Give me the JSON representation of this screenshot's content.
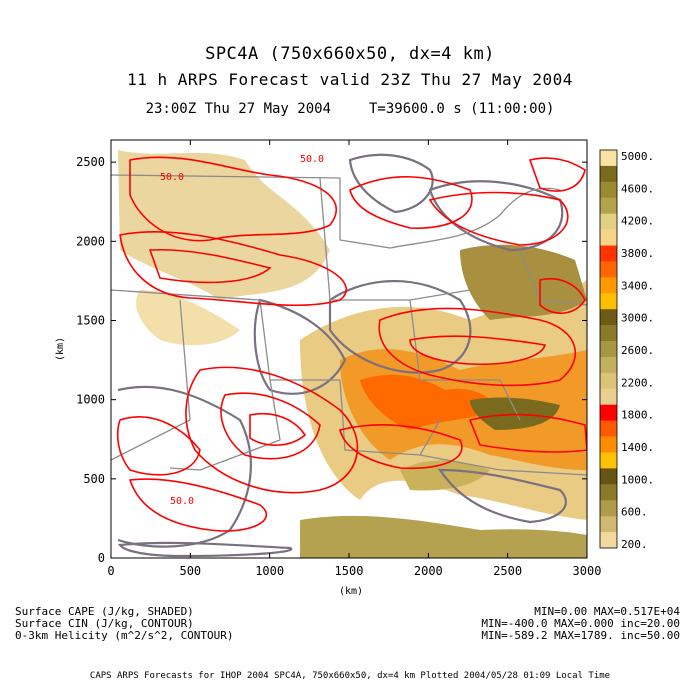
{
  "header": {
    "line1": "SPC4A (750x660x50, dx=4 km)",
    "line2": "11 h ARPS Forecast valid 23Z Thu 27 May 2004",
    "time": "23:00Z Thu 27 May 2004",
    "elapsed": "T=39600.0 s (11:00:00)"
  },
  "axes": {
    "x_label": "(km)",
    "y_label": "(km)",
    "x_range": [
      0,
      3000
    ],
    "y_range": [
      0,
      2640
    ],
    "x_ticks": [
      "0",
      "500",
      "1000",
      "1500",
      "2000",
      "2500",
      "3000"
    ],
    "y_ticks": [
      "0",
      "500",
      "1000",
      "1500",
      "2000",
      "2500"
    ]
  },
  "contour_labels": [
    "50.0",
    "50.0",
    "50.0"
  ],
  "colorbar": {
    "labels": [
      "5000.",
      "4600.",
      "4200.",
      "3800.",
      "3400.",
      "3000.",
      "2600.",
      "2200.",
      "1800.",
      "1400.",
      "1000.",
      "600.",
      "200."
    ],
    "colors_top_to_bottom": [
      "#f9e2a2",
      "#7a6a1e",
      "#9c8a30",
      "#b4a24c",
      "#e2cf86",
      "#f7d487",
      "#ff3300",
      "#ff6600",
      "#ff9900",
      "#ffbf00",
      "#6e5b18",
      "#8c7a28",
      "#a89742",
      "#c2b060",
      "#d9c47a",
      "#eacf90",
      "#ff0000",
      "#ff5a00",
      "#ff8c00",
      "#ffc000",
      "#665414",
      "#8a7a2c",
      "#b09c48",
      "#cfb870",
      "#f2d9a0"
    ]
  },
  "legend_left": [
    "Surface CAPE (J/kg, SHADED)",
    "Surface CIN (J/kg, CONTOUR)",
    "0-3km Helicity (m^2/s^2, CONTOUR)"
  ],
  "legend_right": [
    "MIN=0.00 MAX=0.517E+04",
    "MIN=-400.0 MAX=0.000 inc=20.00",
    "MIN=-589.2 MAX=1789. inc=50.00"
  ],
  "footer": "CAPS ARPS Forecasts for IHOP 2004   SPC4A, 750x660x50, dx=4 km   Plotted 2004/05/28 01:09 Local Time",
  "colors": {
    "helicity": "#ff0000",
    "cin": "#7a7080",
    "border": "#8c8c8c"
  }
}
